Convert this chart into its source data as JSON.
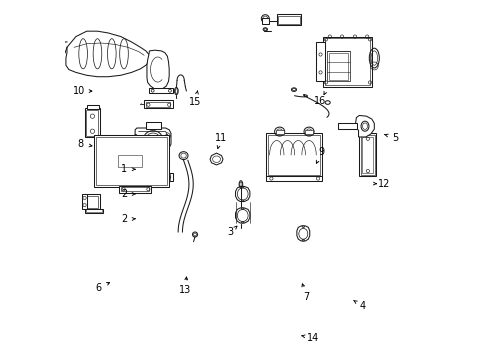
{
  "bg_color": "#ffffff",
  "line_color": "#1a1a1a",
  "lw": 0.75,
  "figsize": [
    4.89,
    3.6
  ],
  "dpi": 100,
  "labels": {
    "1": [
      0.165,
      0.53,
      0.215,
      0.53
    ],
    "2a": [
      0.165,
      0.39,
      0.215,
      0.393
    ],
    "2b": [
      0.165,
      0.46,
      0.215,
      0.462
    ],
    "3": [
      0.462,
      0.355,
      0.488,
      0.38
    ],
    "4": [
      0.83,
      0.148,
      0.795,
      0.17
    ],
    "5": [
      0.92,
      0.618,
      0.88,
      0.63
    ],
    "6": [
      0.093,
      0.198,
      0.135,
      0.22
    ],
    "7": [
      0.673,
      0.175,
      0.655,
      0.23
    ],
    "8": [
      0.043,
      0.6,
      0.095,
      0.592
    ],
    "9": [
      0.715,
      0.577,
      0.695,
      0.535
    ],
    "10": [
      0.04,
      0.748,
      0.095,
      0.748
    ],
    "11": [
      0.434,
      0.618,
      0.42,
      0.568
    ],
    "12": [
      0.89,
      0.488,
      0.86,
      0.49
    ],
    "13": [
      0.335,
      0.192,
      0.34,
      0.25
    ],
    "14": [
      0.69,
      0.06,
      0.648,
      0.068
    ],
    "15": [
      0.363,
      0.718,
      0.373,
      0.768
    ],
    "16": [
      0.712,
      0.72,
      0.725,
      0.745
    ]
  }
}
